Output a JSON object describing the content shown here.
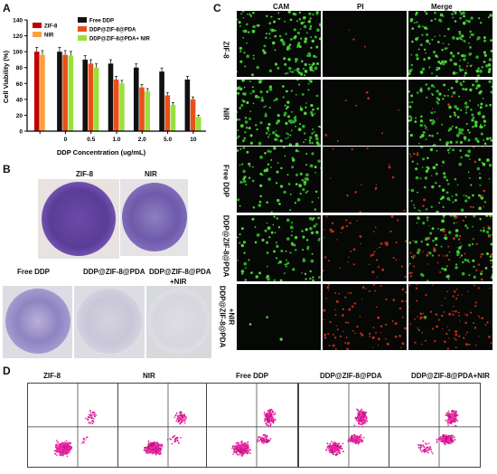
{
  "panel_labels": {
    "a": "A",
    "b": "B",
    "c": "C",
    "d": "D"
  },
  "chart_data": {
    "type": "bar",
    "ylabel": "Cell Viability (%)",
    "xlabel": "DDP Concentration (ug/mL)",
    "ylim": [
      0,
      140
    ],
    "yticks": [
      "0",
      "20",
      "40",
      "60",
      "80",
      "100",
      "120",
      "140"
    ],
    "categories": [
      "",
      "0",
      "0.5",
      "1.0",
      "2.0",
      "5.0",
      "10"
    ],
    "series": [
      {
        "name": "ZIF-8",
        "color": "#c00000",
        "values": [
          100,
          null,
          null,
          null,
          null,
          null,
          null
        ]
      },
      {
        "name": "NIR",
        "color": "#ffa040",
        "values": [
          96,
          null,
          null,
          null,
          null,
          null,
          null
        ]
      },
      {
        "name": "Free DDP",
        "color": "#111111",
        "values": [
          null,
          100,
          90,
          85,
          80,
          75,
          65
        ]
      },
      {
        "name": "DDP@ZIF-8@PDA",
        "color": "#e8501a",
        "values": [
          null,
          96,
          85,
          65,
          55,
          45,
          40
        ]
      },
      {
        "name": "DDP@ZIF-8@PDA+ NIR",
        "color": "#99e03b",
        "values": [
          null,
          95,
          80,
          60,
          50,
          33,
          18
        ]
      }
    ]
  },
  "dishes": {
    "top": [
      "ZIF-8",
      "NIR"
    ],
    "bottom": [
      "Free DDP",
      "DDP@ZIF-8@PDA",
      "DDP@ZIF-8@PDA",
      "+NIR"
    ]
  },
  "microscopy": {
    "columns": [
      "CAM",
      "PI",
      "Merge"
    ],
    "rows": [
      "ZIF-8",
      "NIR",
      "Free DDP",
      "DDP@ZIF-8@PDA",
      "DDP@ZIF-8@PDA",
      "+NIR"
    ]
  },
  "flow": {
    "titles": [
      "ZIF-8",
      "NIR",
      "Free DDP",
      "DDP@ZIF-8@PDA",
      "DDP@ZIF-8@PDA+NIR"
    ]
  }
}
